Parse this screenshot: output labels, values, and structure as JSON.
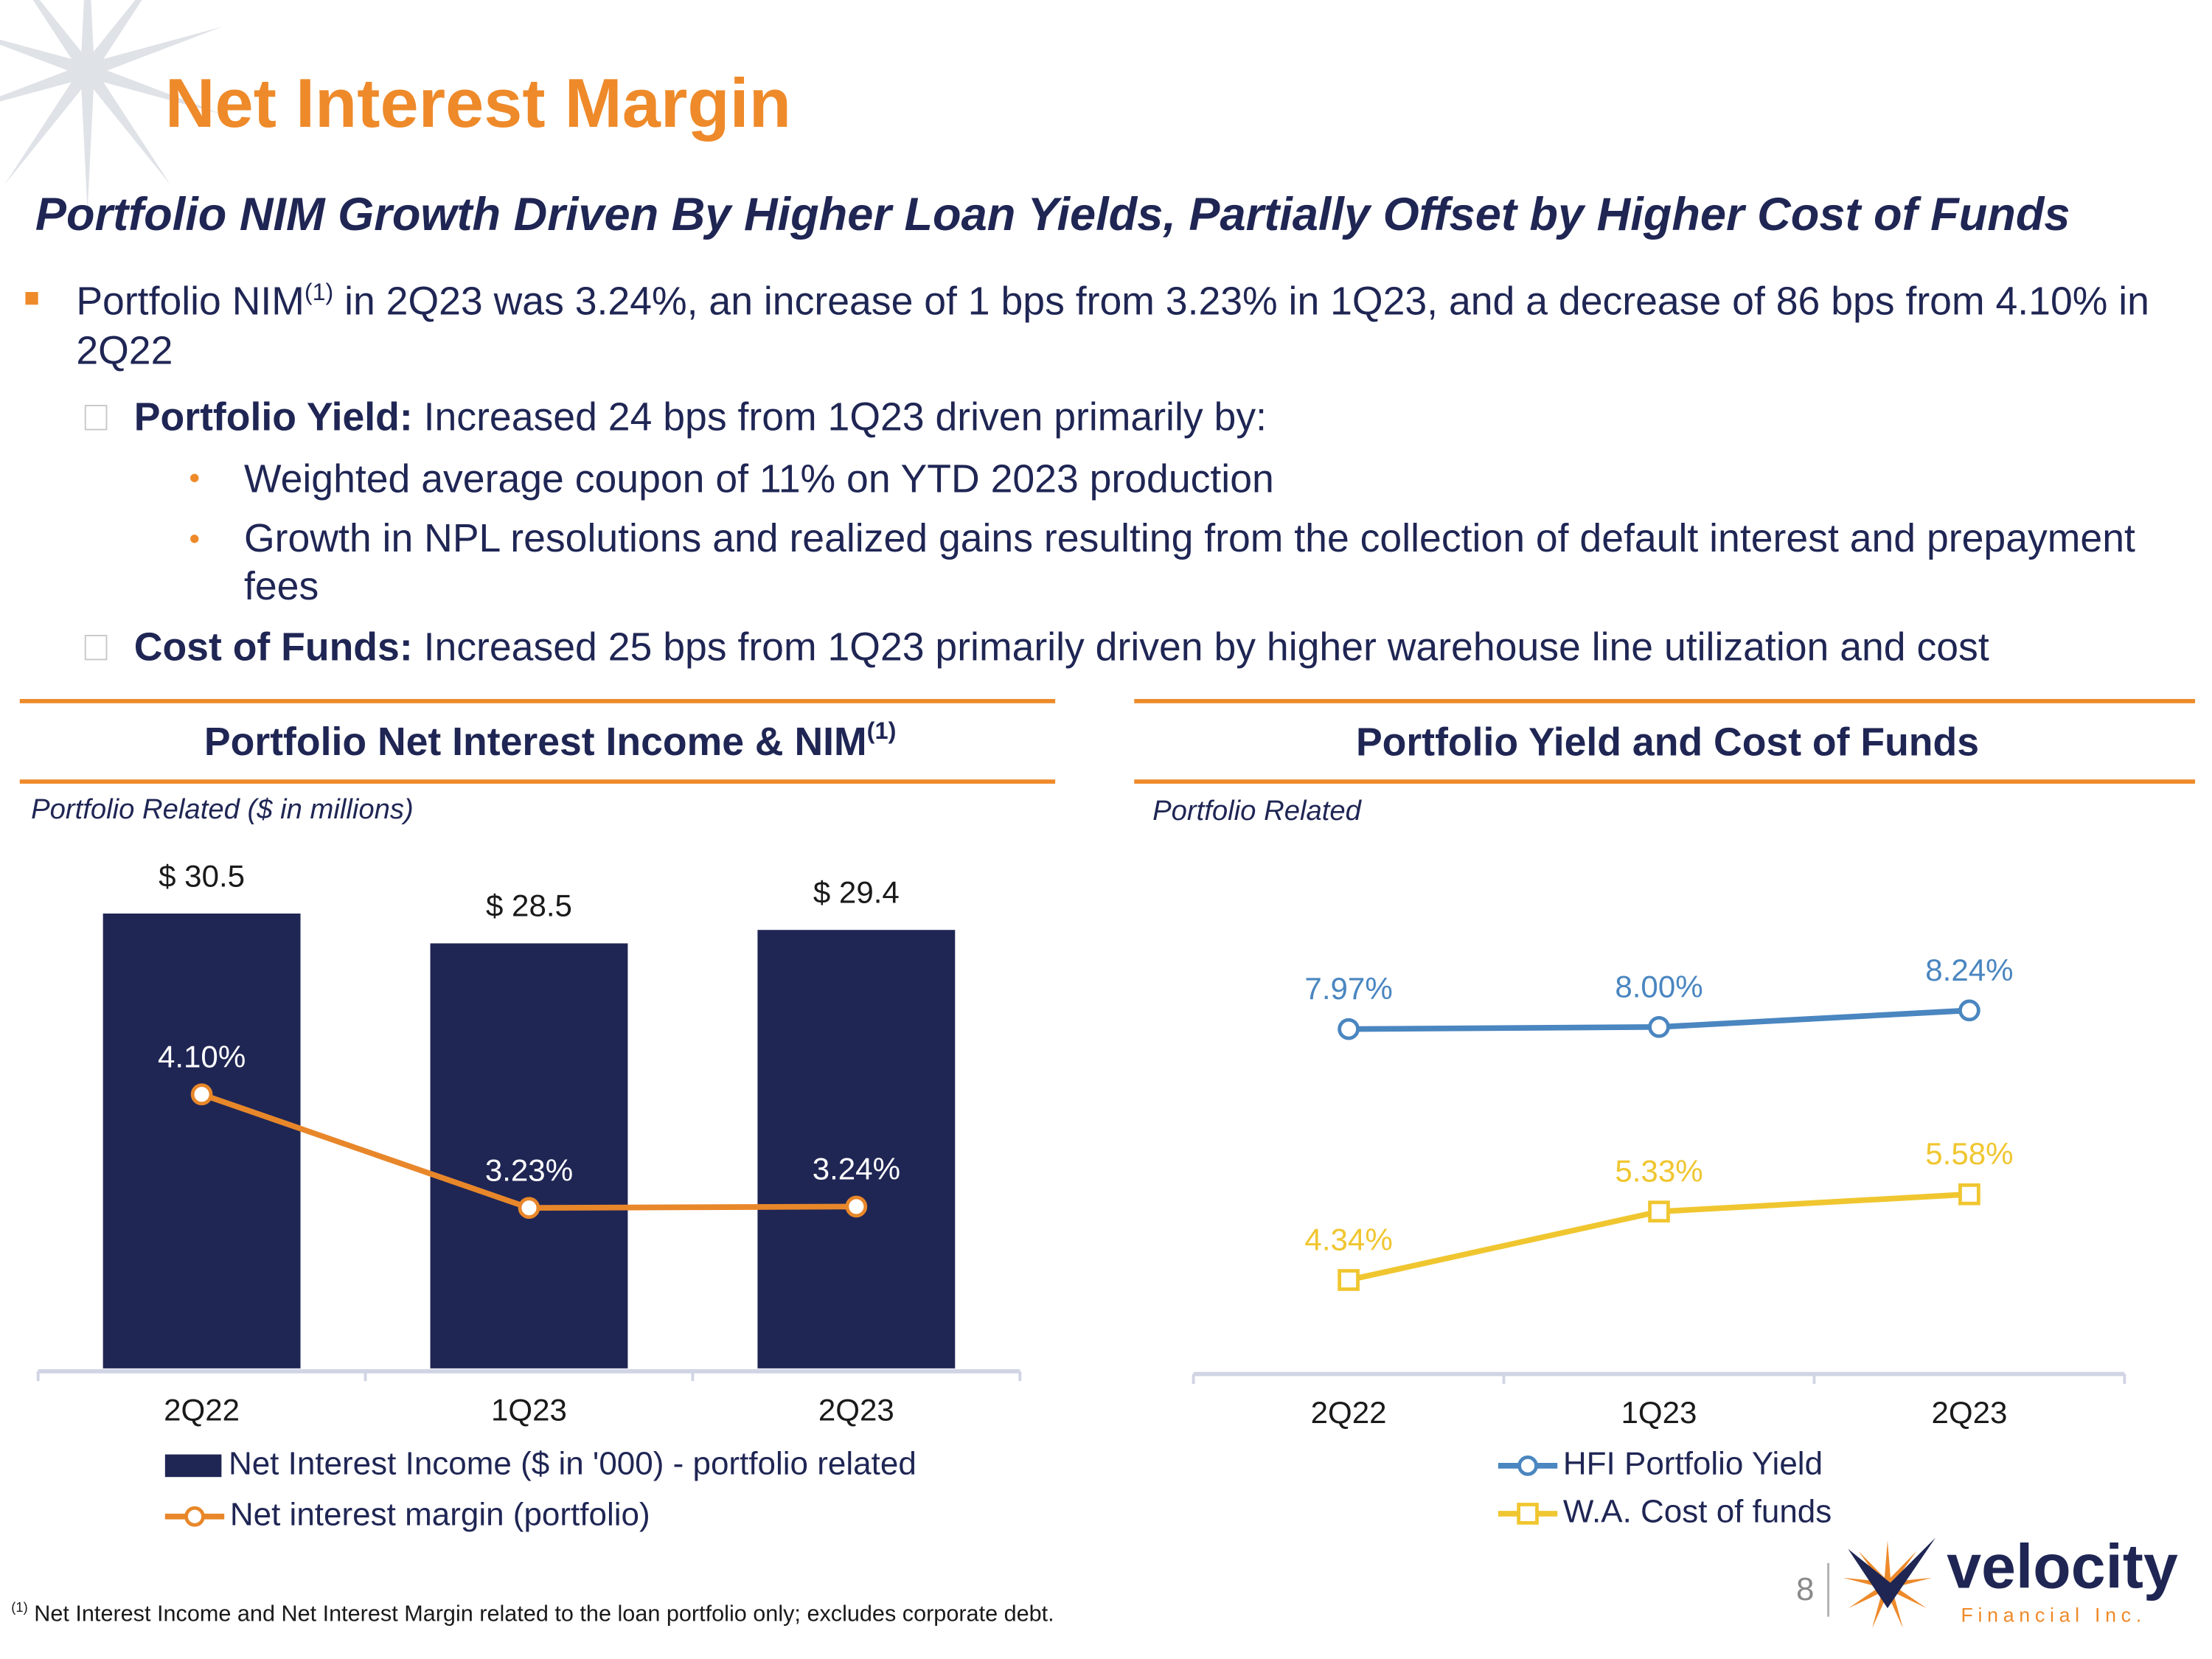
{
  "title": "Net Interest Margin",
  "subtitle": "Portfolio NIM Growth Driven By Higher Loan Yields, Partially Offset by Higher Cost of Funds",
  "bullet": {
    "text": "Portfolio NIM",
    "sup": "(1)",
    "rest": " in 2Q23 was 3.24%, an increase of 1 bps from 3.23% in 1Q23, and a decrease of 86 bps from 4.10% in 2Q22"
  },
  "sub_bullets": [
    {
      "label": "Portfolio Yield:",
      "text": " Increased 24 bps from 1Q23 driven primarily by:",
      "items": [
        "Weighted average coupon of 11% on YTD 2023 production",
        "Growth in NPL resolutions and realized gains resulting from the collection of default interest and prepayment fees"
      ]
    },
    {
      "label": "Cost of Funds:",
      "text": " Increased 25 bps from 1Q23 primarily driven by higher warehouse line utilization and cost",
      "items": []
    }
  ],
  "footnote": {
    "sup": "(1)",
    "text": " Net Interest Income and Net Interest Margin related to the loan portfolio only; excludes corporate debt."
  },
  "page_number": "8",
  "logo": {
    "name": "velocity",
    "tagline": "Financial Inc."
  },
  "chart_data": [
    {
      "type": "bar",
      "title": "Portfolio Net Interest Income & NIM",
      "title_sup": "(1)",
      "subtitle": "Portfolio Related ($ in millions)",
      "categories": [
        "2Q22",
        "1Q23",
        "2Q23"
      ],
      "series": [
        {
          "name": "Net Interest Income ($ in '000) - portfolio related",
          "color": "#1f2654",
          "values": [
            30.5,
            28.5,
            29.4
          ],
          "value_labels": [
            "$ 30.5",
            "$ 28.5",
            "$ 29.4"
          ]
        },
        {
          "name": "Net interest margin (portfolio)",
          "type": "line",
          "axis": "y2",
          "color": "#e8872a",
          "marker": "circle",
          "values": [
            4.1,
            3.23,
            3.24
          ],
          "value_labels": [
            "4.10%",
            "3.23%",
            "3.24%"
          ]
        }
      ],
      "ylim": [
        0,
        35
      ],
      "y2lim": [
        2,
        6
      ]
    },
    {
      "type": "line",
      "title": "Portfolio Yield and Cost of Funds",
      "subtitle": "Portfolio Related",
      "categories": [
        "2Q22",
        "1Q23",
        "2Q23"
      ],
      "series": [
        {
          "name": "HFI Portfolio Yield",
          "color": "#4a86c0",
          "marker": "circle",
          "values": [
            7.97,
            8.0,
            8.24
          ],
          "value_labels": [
            "7.97%",
            "8.00%",
            "8.24%"
          ]
        },
        {
          "name": "W.A. Cost of funds",
          "color": "#f0c630",
          "marker": "square",
          "values": [
            4.34,
            5.33,
            5.58
          ],
          "value_labels": [
            "4.34%",
            "5.33%",
            "5.58%"
          ]
        }
      ],
      "ylim": [
        3,
        10.5
      ]
    }
  ]
}
